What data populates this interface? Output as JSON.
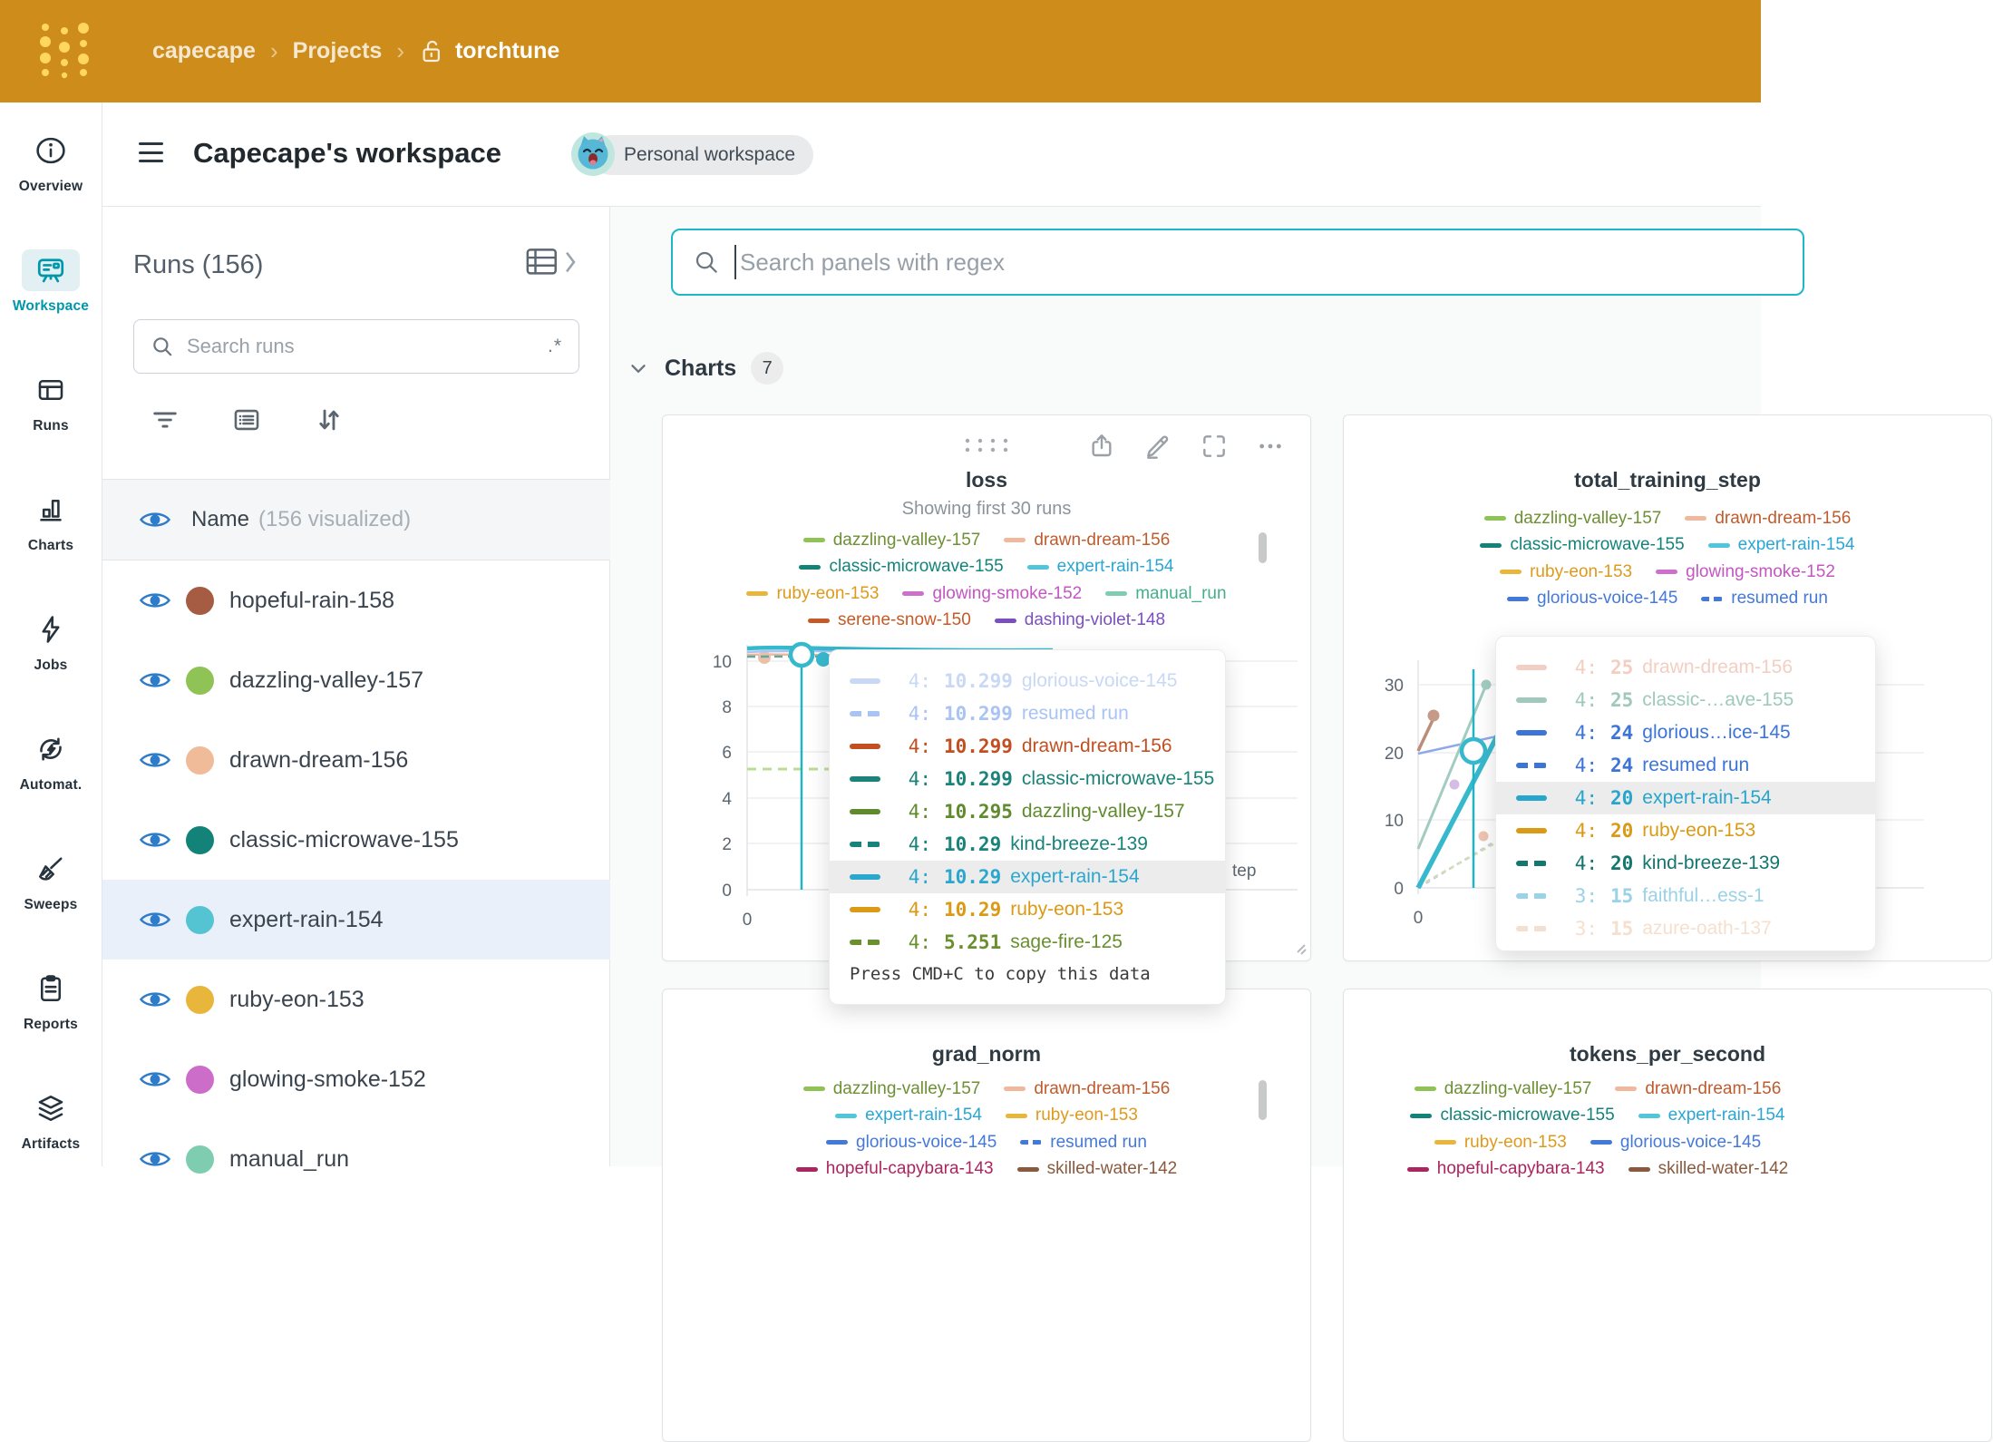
{
  "navbar": {
    "breadcrumb": {
      "entity": "capecape",
      "section": "Projects",
      "project": "torchtune"
    }
  },
  "sidebar": {
    "items": [
      {
        "icon": "info",
        "label": "Overview",
        "active": false
      },
      {
        "icon": "workspace",
        "label": "Workspace",
        "active": true
      },
      {
        "icon": "runs-table",
        "label": "Runs",
        "active": false
      },
      {
        "icon": "bar-chart",
        "label": "Charts",
        "active": false
      },
      {
        "icon": "lightning",
        "label": "Jobs",
        "active": false
      },
      {
        "icon": "automations",
        "label": "Automat.",
        "active": false
      },
      {
        "icon": "broom",
        "label": "Sweeps",
        "active": false
      },
      {
        "icon": "clipboard",
        "label": "Reports",
        "active": false
      },
      {
        "icon": "layers",
        "label": "Artifacts",
        "active": false
      }
    ]
  },
  "workspace_header": {
    "title": "Capecape's workspace",
    "badge": "Personal workspace"
  },
  "runs_panel": {
    "title": "Runs (156)",
    "search_placeholder": "Search runs",
    "regex_hint": ".*",
    "name_label": "Name",
    "visualized_label": "(156 visualized)",
    "runs": [
      {
        "name": "hopeful-rain-158",
        "color": "#A55C42",
        "selected": false
      },
      {
        "name": "dazzling-valley-157",
        "color": "#90C355",
        "selected": false
      },
      {
        "name": "drawn-dream-156",
        "color": "#F0BB98",
        "selected": false
      },
      {
        "name": "classic-microwave-155",
        "color": "#13837A",
        "selected": false
      },
      {
        "name": "expert-rain-154",
        "color": "#54C4D3",
        "selected": true
      },
      {
        "name": "ruby-eon-153",
        "color": "#E9B63C",
        "selected": false
      },
      {
        "name": "glowing-smoke-152",
        "color": "#CC6DCA",
        "selected": false
      },
      {
        "name": "manual_run",
        "color": "#7FCDB0",
        "selected": false
      }
    ]
  },
  "content": {
    "search_placeholder": "Search panels with regex",
    "section_label": "Charts",
    "section_count": "7"
  },
  "panels": {
    "loss": {
      "title": "loss",
      "subtitle": "Showing first 30 runs",
      "y_ticks": [
        "10",
        "8",
        "6",
        "4",
        "2",
        "0"
      ],
      "x_tick": "0",
      "x_axis_label_visible": "tep",
      "legend_rows": [
        [
          {
            "label": "dazzling-valley-157",
            "color": "#6E9034",
            "dash": "#90C355",
            "style": "solid"
          },
          {
            "label": "drawn-dream-156",
            "color": "#BF5B2D",
            "dash": "#F0B89C",
            "style": "solid"
          }
        ],
        [
          {
            "label": "classic-microwave-155",
            "color": "#13837A",
            "dash": "#13837A",
            "style": "solid"
          },
          {
            "label": "expert-rain-154",
            "color": "#2AA6D5",
            "dash": "#4FC6DB",
            "style": "solid"
          }
        ],
        [
          {
            "label": "ruby-eon-153",
            "color": "#DE9A1C",
            "dash": "#E9B63C",
            "style": "solid"
          },
          {
            "label": "glowing-smoke-152",
            "color": "#C356C3",
            "dash": "#CD6FCB",
            "style": "solid"
          },
          {
            "label": "manual_run",
            "color": "#45AE8E",
            "dash": "#7FCDB0",
            "style": "solid"
          }
        ],
        [
          {
            "label": "serene-snow-150",
            "color": "#C55A26",
            "dash": "#C55A26",
            "style": "solid"
          },
          {
            "label": "dashing-violet-148",
            "color": "#7C4FC0",
            "dash": "#7C4FC0",
            "style": "solid"
          }
        ]
      ],
      "tooltip": {
        "rows": [
          {
            "step": "4:",
            "value": "10.299",
            "name": "glorious-voice-145",
            "color": "#C9D8F5",
            "style": "solid",
            "highlight": false
          },
          {
            "step": "4:",
            "value": "10.299",
            "name": "resumed run",
            "color": "#A9C3F2",
            "style": "dashed",
            "highlight": false
          },
          {
            "step": "4:",
            "value": "10.299",
            "name": "drawn-dream-156",
            "color": "#C14F21",
            "style": "solid",
            "highlight": false
          },
          {
            "step": "4:",
            "value": "10.299",
            "name": "classic-microwave-155",
            "color": "#1B8379",
            "style": "solid",
            "highlight": false
          },
          {
            "step": "4:",
            "value": "10.295",
            "name": "dazzling-valley-157",
            "color": "#5F8A2D",
            "style": "solid",
            "highlight": false
          },
          {
            "step": "4:",
            "value": "10.29",
            "name": "kind-breeze-139",
            "color": "#17837A",
            "style": "dashed",
            "highlight": false
          },
          {
            "step": "4:",
            "value": "10.29",
            "name": "expert-rain-154",
            "color": "#2BA7CE",
            "style": "solid",
            "highlight": true
          },
          {
            "step": "4:",
            "value": "10.29",
            "name": "ruby-eon-153",
            "color": "#DB9A15",
            "style": "solid",
            "highlight": false
          },
          {
            "step": "4:",
            "value": "5.251",
            "name": "sage-fire-125",
            "color": "#6A8F2F",
            "style": "dashed",
            "highlight": false
          }
        ],
        "footer": "Press CMD+C to copy this data"
      }
    },
    "total_training_step": {
      "title": "total_training_step",
      "y_ticks": [
        "30",
        "20",
        "10",
        "0"
      ],
      "x_tick": "0",
      "legend_rows": [
        [
          {
            "label": "dazzling-valley-157",
            "color": "#6E9034",
            "dash": "#90C355",
            "style": "solid"
          },
          {
            "label": "drawn-dream-156",
            "color": "#BF5B2D",
            "dash": "#F0B89C",
            "style": "solid"
          }
        ],
        [
          {
            "label": "classic-microwave-155",
            "color": "#13837A",
            "dash": "#13837A",
            "style": "solid"
          },
          {
            "label": "expert-rain-154",
            "color": "#2AA6D5",
            "dash": "#4FC6DB",
            "style": "solid"
          }
        ],
        [
          {
            "label": "ruby-eon-153",
            "color": "#DE9A1C",
            "dash": "#E9B63C",
            "style": "solid"
          },
          {
            "label": "glowing-smoke-152",
            "color": "#C356C3",
            "dash": "#CD6FCB",
            "style": "solid"
          }
        ],
        [
          {
            "label": "glorious-voice-145",
            "color": "#4479D9",
            "dash": "#4479D9",
            "style": "solid"
          },
          {
            "label": "resumed run",
            "color": "#4479D9",
            "dash": "#4479D9",
            "style": "dashed"
          }
        ]
      ],
      "tooltip": {
        "rows": [
          {
            "step": "4:",
            "value": "25",
            "name": "drawn-dream-156",
            "color": "#F2CFC2",
            "style": "solid",
            "highlight": false
          },
          {
            "step": "4:",
            "value": "25",
            "name": "classic-…ave-155",
            "color": "#9FC9BD",
            "style": "solid",
            "highlight": false
          },
          {
            "step": "4:",
            "value": "24",
            "name": "glorious…ice-145",
            "color": "#3D74D8",
            "style": "solid",
            "highlight": false
          },
          {
            "step": "4:",
            "value": "24",
            "name": "resumed run",
            "color": "#3D74D8",
            "style": "dashed",
            "highlight": false
          },
          {
            "step": "4:",
            "value": "20",
            "name": "expert-rain-154",
            "color": "#28A5CC",
            "style": "solid",
            "highlight": true
          },
          {
            "step": "4:",
            "value": "20",
            "name": "ruby-eon-153",
            "color": "#DB9A15",
            "style": "solid",
            "highlight": false
          },
          {
            "step": "4:",
            "value": "20",
            "name": "kind-breeze-139",
            "color": "#14766E",
            "style": "dashed",
            "highlight": false
          },
          {
            "step": "3:",
            "value": "15",
            "name": "faithful…ess-1",
            "color": "#9AD2E8",
            "style": "dashed",
            "highlight": false
          },
          {
            "step": "3:",
            "value": "15",
            "name": "azure-oath-137",
            "color": "#F5E0CF",
            "style": "dashed",
            "highlight": false
          }
        ]
      }
    },
    "grad_norm": {
      "title": "grad_norm",
      "legend_rows": [
        [
          {
            "label": "dazzling-valley-157",
            "color": "#6E9034",
            "dash": "#90C355",
            "style": "solid"
          },
          {
            "label": "drawn-dream-156",
            "color": "#BF5B2D",
            "dash": "#F0B89C",
            "style": "solid"
          }
        ],
        [
          {
            "label": "expert-rain-154",
            "color": "#2AA6D5",
            "dash": "#4FC6DB",
            "style": "solid"
          },
          {
            "label": "ruby-eon-153",
            "color": "#DE9A1C",
            "dash": "#E9B63C",
            "style": "solid"
          }
        ],
        [
          {
            "label": "glorious-voice-145",
            "color": "#4479D9",
            "dash": "#4479D9",
            "style": "solid"
          },
          {
            "label": "resumed run",
            "color": "#4479D9",
            "dash": "#4479D9",
            "style": "dashed"
          }
        ],
        [
          {
            "label": "hopeful-capybara-143",
            "color": "#AB2560",
            "dash": "#AB2560",
            "style": "solid"
          },
          {
            "label": "skilled-water-142",
            "color": "#8A5A3F",
            "dash": "#8A5A3F",
            "style": "solid"
          }
        ]
      ]
    },
    "tokens_per_second": {
      "title": "tokens_per_second",
      "legend_rows": [
        [
          {
            "label": "dazzling-valley-157",
            "color": "#6E9034",
            "dash": "#90C355",
            "style": "solid"
          },
          {
            "label": "drawn-dream-156",
            "color": "#BF5B2D",
            "dash": "#F0B89C",
            "style": "solid"
          }
        ],
        [
          {
            "label": "classic-microwave-155",
            "color": "#13837A",
            "dash": "#13837A",
            "style": "solid"
          },
          {
            "label": "expert-rain-154",
            "color": "#2AA6D5",
            "dash": "#4FC6DB",
            "style": "solid"
          }
        ],
        [
          {
            "label": "ruby-eon-153",
            "color": "#DE9A1C",
            "dash": "#E9B63C",
            "style": "solid"
          },
          {
            "label": "glorious-voice-145",
            "color": "#4479D9",
            "dash": "#4479D9",
            "style": "solid"
          }
        ],
        [
          {
            "label": "hopeful-capybara-143",
            "color": "#AB2560",
            "dash": "#AB2560",
            "style": "solid"
          },
          {
            "label": "skilled-water-142",
            "color": "#8A5A3F",
            "dash": "#8A5A3F",
            "style": "solid"
          }
        ]
      ]
    }
  },
  "chart_data": [
    {
      "type": "line",
      "title": "loss",
      "subtitle": "Showing first 30 runs",
      "xlabel": "Step",
      "ylabel": "",
      "ylim": [
        0,
        10
      ],
      "x_ticks_visible": [
        0
      ],
      "crosshair_step": 4,
      "highlighted_run": "expert-rain-154",
      "grid": true,
      "legend_position": "top",
      "series": [
        {
          "name": "glorious-voice-145",
          "x": [
            4
          ],
          "values": [
            10.299
          ]
        },
        {
          "name": "resumed run",
          "x": [
            4
          ],
          "values": [
            10.299
          ]
        },
        {
          "name": "drawn-dream-156",
          "x": [
            4
          ],
          "values": [
            10.299
          ]
        },
        {
          "name": "classic-microwave-155",
          "x": [
            4
          ],
          "values": [
            10.299
          ]
        },
        {
          "name": "dazzling-valley-157",
          "x": [
            4
          ],
          "values": [
            10.295
          ]
        },
        {
          "name": "kind-breeze-139",
          "x": [
            4
          ],
          "values": [
            10.29
          ]
        },
        {
          "name": "expert-rain-154",
          "x": [
            4
          ],
          "values": [
            10.29
          ]
        },
        {
          "name": "ruby-eon-153",
          "x": [
            4
          ],
          "values": [
            10.29
          ]
        },
        {
          "name": "sage-fire-125",
          "x": [
            4
          ],
          "values": [
            5.251
          ]
        }
      ]
    },
    {
      "type": "line",
      "title": "total_training_step",
      "ylim": [
        0,
        30
      ],
      "x_ticks_visible": [
        0
      ],
      "crosshair_step": 4,
      "highlighted_run": "expert-rain-154",
      "grid": true,
      "legend_position": "top",
      "series": [
        {
          "name": "drawn-dream-156",
          "x": [
            4
          ],
          "values": [
            25
          ]
        },
        {
          "name": "classic-microwave-155",
          "x": [
            4
          ],
          "values": [
            25
          ]
        },
        {
          "name": "glorious-voice-145",
          "x": [
            4
          ],
          "values": [
            24
          ]
        },
        {
          "name": "resumed run",
          "x": [
            4
          ],
          "values": [
            24
          ]
        },
        {
          "name": "expert-rain-154",
          "x": [
            4
          ],
          "values": [
            20
          ]
        },
        {
          "name": "ruby-eon-153",
          "x": [
            4
          ],
          "values": [
            20
          ]
        },
        {
          "name": "kind-breeze-139",
          "x": [
            4
          ],
          "values": [
            20
          ]
        },
        {
          "name": "faithful…ess-1",
          "x": [
            3
          ],
          "values": [
            15
          ]
        },
        {
          "name": "azure-oath-137",
          "x": [
            3
          ],
          "values": [
            15
          ]
        }
      ]
    },
    {
      "type": "line",
      "title": "grad_norm",
      "note": "only title and legend visible"
    },
    {
      "type": "line",
      "title": "tokens_per_second",
      "note": "only title and legend visible"
    }
  ]
}
